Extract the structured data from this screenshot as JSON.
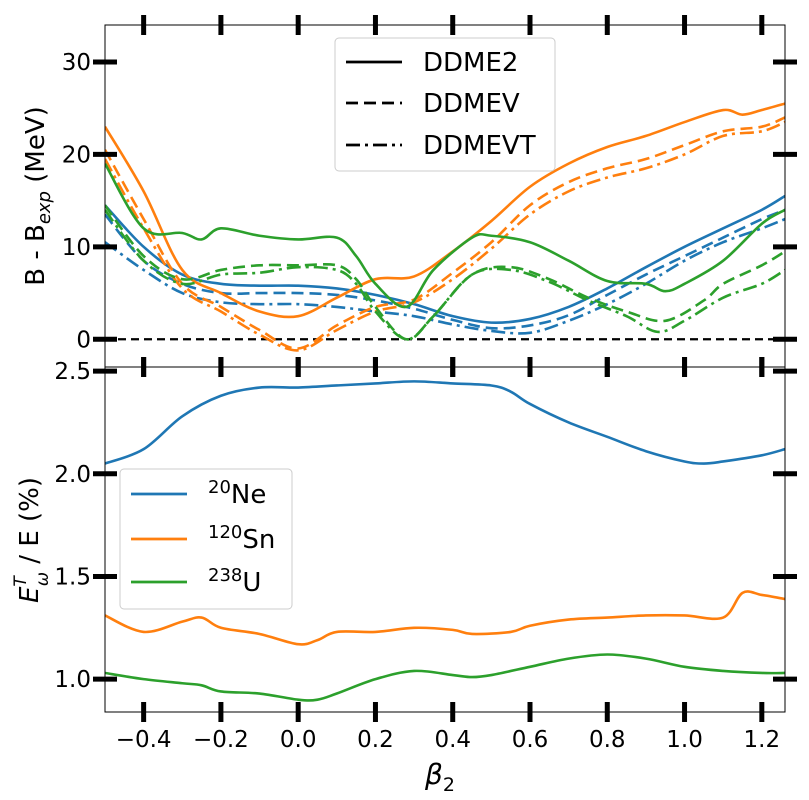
{
  "chart_data": [
    {
      "type": "line",
      "panel": "top",
      "ylabel": "B - B",
      "ylabel_sub": "exp",
      "ylabel_tail": " (MeV)",
      "xlim": [
        -0.5,
        1.26
      ],
      "ylim": [
        -3,
        34
      ],
      "yticks": [
        0,
        10,
        20,
        30
      ],
      "ytick_labels": [
        "0",
        "10",
        "20",
        "30"
      ],
      "zero_line": true,
      "legend": {
        "position": "top-center",
        "entries": [
          {
            "label": "DDME2",
            "style": "solid"
          },
          {
            "label": "DDMEV",
            "style": "dashed"
          },
          {
            "label": "DDMEVT",
            "style": "dashdot"
          }
        ]
      },
      "series": [
        {
          "name": "20Ne DDME2",
          "nucleus": "20Ne",
          "model": "DDME2",
          "color": "#1f77b4",
          "style": "solid",
          "x": [
            -0.5,
            -0.4,
            -0.3,
            -0.2,
            -0.1,
            0.0,
            0.1,
            0.2,
            0.3,
            0.4,
            0.5,
            0.6,
            0.7,
            0.8,
            0.9,
            1.0,
            1.1,
            1.2,
            1.26
          ],
          "y": [
            14.5,
            10.0,
            7.0,
            6.0,
            5.8,
            5.8,
            5.5,
            4.8,
            3.8,
            2.5,
            1.8,
            2.2,
            3.5,
            5.5,
            7.8,
            10.0,
            12.0,
            14.0,
            15.5
          ]
        },
        {
          "name": "20Ne DDMEV",
          "nucleus": "20Ne",
          "model": "DDMEV",
          "color": "#1f77b4",
          "style": "dashed",
          "x": [
            -0.5,
            -0.4,
            -0.3,
            -0.2,
            -0.1,
            0.0,
            0.1,
            0.2,
            0.3,
            0.4,
            0.5,
            0.6,
            0.7,
            0.8,
            0.9,
            1.0,
            1.1,
            1.2,
            1.26
          ],
          "y": [
            13.5,
            8.5,
            6.0,
            5.0,
            5.0,
            5.0,
            4.8,
            4.2,
            3.3,
            2.1,
            1.2,
            1.5,
            2.6,
            4.8,
            7.0,
            9.0,
            11.0,
            13.0,
            14.0
          ]
        },
        {
          "name": "20Ne DDMEVT",
          "nucleus": "20Ne",
          "model": "DDMEVT",
          "color": "#1f77b4",
          "style": "dashdot",
          "x": [
            -0.5,
            -0.4,
            -0.3,
            -0.2,
            -0.1,
            0.0,
            0.1,
            0.2,
            0.3,
            0.4,
            0.5,
            0.6,
            0.7,
            0.8,
            0.9,
            1.0,
            1.1,
            1.2,
            1.26
          ],
          "y": [
            10.5,
            7.5,
            5.0,
            4.0,
            3.8,
            3.8,
            3.5,
            3.0,
            2.5,
            1.6,
            0.9,
            0.7,
            2.0,
            3.8,
            6.0,
            8.5,
            10.5,
            12.0,
            13.0
          ]
        },
        {
          "name": "120Sn DDME2",
          "nucleus": "120Sn",
          "model": "DDME2",
          "color": "#ff7f0e",
          "style": "solid",
          "x": [
            -0.5,
            -0.4,
            -0.3,
            -0.2,
            -0.1,
            0.0,
            0.1,
            0.2,
            0.3,
            0.4,
            0.5,
            0.6,
            0.7,
            0.8,
            0.9,
            1.0,
            1.1,
            1.15,
            1.2,
            1.26
          ],
          "y": [
            23.0,
            16.0,
            7.5,
            5.0,
            3.0,
            2.5,
            4.5,
            6.5,
            6.8,
            9.5,
            12.8,
            16.5,
            19.0,
            20.8,
            22.0,
            23.5,
            24.8,
            24.3,
            24.8,
            25.5
          ]
        },
        {
          "name": "120Sn DDMEV",
          "nucleus": "120Sn",
          "model": "DDMEV",
          "color": "#ff7f0e",
          "style": "dashed",
          "x": [
            -0.5,
            -0.4,
            -0.3,
            -0.2,
            -0.1,
            0.0,
            0.1,
            0.2,
            0.3,
            0.4,
            0.5,
            0.6,
            0.7,
            0.8,
            0.9,
            1.0,
            1.1,
            1.2,
            1.26
          ],
          "y": [
            20.5,
            13.0,
            6.0,
            3.5,
            1.0,
            -1.0,
            1.5,
            3.5,
            4.3,
            7.2,
            10.5,
            14.5,
            17.0,
            18.5,
            19.5,
            21.0,
            22.5,
            23.0,
            24.0
          ]
        },
        {
          "name": "120Sn DDMEVT",
          "nucleus": "120Sn",
          "model": "DDMEVT",
          "color": "#ff7f0e",
          "style": "dashdot",
          "x": [
            -0.5,
            -0.4,
            -0.3,
            -0.2,
            -0.1,
            0.0,
            0.1,
            0.2,
            0.3,
            0.4,
            0.5,
            0.6,
            0.7,
            0.8,
            0.9,
            1.0,
            1.1,
            1.2,
            1.26
          ],
          "y": [
            19.5,
            12.0,
            5.5,
            3.0,
            0.5,
            -1.2,
            1.0,
            3.0,
            4.0,
            6.5,
            9.8,
            13.5,
            16.0,
            17.5,
            18.5,
            20.0,
            22.0,
            22.5,
            23.5
          ]
        },
        {
          "name": "238U DDME2",
          "nucleus": "238U",
          "model": "DDME2",
          "color": "#2ca02c",
          "style": "solid",
          "x": [
            -0.5,
            -0.4,
            -0.3,
            -0.25,
            -0.2,
            -0.1,
            0.0,
            0.1,
            0.15,
            0.2,
            0.28,
            0.35,
            0.45,
            0.5,
            0.6,
            0.7,
            0.8,
            0.9,
            0.95,
            1.0,
            1.1,
            1.2,
            1.26
          ],
          "y": [
            19.0,
            12.0,
            11.5,
            10.8,
            12.0,
            11.2,
            10.8,
            11.0,
            9.0,
            6.0,
            3.5,
            7.5,
            11.0,
            11.2,
            10.5,
            8.5,
            6.3,
            6.0,
            5.2,
            6.0,
            8.5,
            12.5,
            14.0
          ]
        },
        {
          "name": "238U DDMEV",
          "nucleus": "238U",
          "model": "DDMEV",
          "color": "#2ca02c",
          "style": "dashed",
          "x": [
            -0.5,
            -0.4,
            -0.3,
            -0.2,
            -0.1,
            0.0,
            0.1,
            0.15,
            0.2,
            0.28,
            0.35,
            0.45,
            0.55,
            0.65,
            0.75,
            0.85,
            0.95,
            1.05,
            1.1,
            1.2,
            1.26
          ],
          "y": [
            14.5,
            9.0,
            6.5,
            7.5,
            8.0,
            8.0,
            8.0,
            6.5,
            3.5,
            0.0,
            2.5,
            7.0,
            7.8,
            6.5,
            4.5,
            3.0,
            2.0,
            4.2,
            6.0,
            8.0,
            9.5
          ]
        },
        {
          "name": "238U DDMEVT",
          "nucleus": "238U",
          "model": "DDMEVT",
          "color": "#2ca02c",
          "style": "dashdot",
          "x": [
            -0.5,
            -0.4,
            -0.3,
            -0.2,
            -0.1,
            0.0,
            0.1,
            0.15,
            0.2,
            0.28,
            0.35,
            0.45,
            0.55,
            0.65,
            0.75,
            0.85,
            0.93,
            1.0,
            1.1,
            1.2,
            1.26
          ],
          "y": [
            14.0,
            8.5,
            6.0,
            7.0,
            7.2,
            7.8,
            7.5,
            6.0,
            3.0,
            0.0,
            2.5,
            7.0,
            7.5,
            6.2,
            4.2,
            2.5,
            0.8,
            2.0,
            4.5,
            6.0,
            7.5
          ]
        }
      ]
    },
    {
      "type": "line",
      "panel": "bottom",
      "title": "",
      "xlabel": "β",
      "xlabel_sub": "2",
      "ylabel": "E",
      "ylabel_sup": "T",
      "ylabel_sub": "ω",
      "ylabel_tail": " / E (%)",
      "xlim": [
        -0.5,
        1.26
      ],
      "ylim": [
        0.84,
        2.52
      ],
      "xticks": [
        -0.4,
        -0.2,
        0.0,
        0.2,
        0.4,
        0.6,
        0.8,
        1.0,
        1.2
      ],
      "xtick_labels": [
        "−0.4",
        "−0.2",
        "0.0",
        "0.2",
        "0.4",
        "0.6",
        "0.8",
        "1.0",
        "1.2"
      ],
      "yticks": [
        1.0,
        1.5,
        2.0,
        2.5
      ],
      "ytick_labels": [
        "1.0",
        "1.5",
        "2.0",
        "2.5"
      ],
      "legend": {
        "position": "center-left",
        "entries": [
          {
            "mass": "20",
            "symbol": "Ne",
            "color": "#1f77b4"
          },
          {
            "mass": "120",
            "symbol": "Sn",
            "color": "#ff7f0e"
          },
          {
            "mass": "238",
            "symbol": "U",
            "color": "#2ca02c"
          }
        ]
      },
      "series": [
        {
          "name": "20Ne",
          "color": "#1f77b4",
          "x": [
            -0.5,
            -0.4,
            -0.3,
            -0.2,
            -0.1,
            0.0,
            0.1,
            0.2,
            0.3,
            0.4,
            0.5,
            0.55,
            0.6,
            0.7,
            0.8,
            0.9,
            1.0,
            1.05,
            1.1,
            1.2,
            1.26
          ],
          "y": [
            2.05,
            2.12,
            2.28,
            2.38,
            2.42,
            2.42,
            2.43,
            2.44,
            2.45,
            2.44,
            2.43,
            2.4,
            2.34,
            2.25,
            2.18,
            2.11,
            2.06,
            2.05,
            2.06,
            2.09,
            2.12
          ]
        },
        {
          "name": "120Sn",
          "color": "#ff7f0e",
          "x": [
            -0.5,
            -0.4,
            -0.3,
            -0.25,
            -0.2,
            -0.1,
            0.0,
            0.05,
            0.1,
            0.2,
            0.3,
            0.4,
            0.45,
            0.55,
            0.6,
            0.7,
            0.8,
            0.9,
            1.0,
            1.1,
            1.15,
            1.2,
            1.26
          ],
          "y": [
            1.31,
            1.23,
            1.28,
            1.3,
            1.25,
            1.22,
            1.17,
            1.19,
            1.23,
            1.23,
            1.25,
            1.24,
            1.22,
            1.23,
            1.26,
            1.29,
            1.3,
            1.31,
            1.31,
            1.3,
            1.42,
            1.41,
            1.39
          ]
        },
        {
          "name": "238U",
          "color": "#2ca02c",
          "x": [
            -0.5,
            -0.4,
            -0.3,
            -0.25,
            -0.2,
            -0.1,
            0.0,
            0.05,
            0.1,
            0.2,
            0.3,
            0.4,
            0.45,
            0.5,
            0.6,
            0.7,
            0.8,
            0.9,
            1.0,
            1.1,
            1.2,
            1.26
          ],
          "y": [
            1.03,
            1.0,
            0.98,
            0.97,
            0.94,
            0.93,
            0.9,
            0.9,
            0.93,
            1.0,
            1.04,
            1.02,
            1.01,
            1.02,
            1.06,
            1.1,
            1.12,
            1.1,
            1.06,
            1.04,
            1.03,
            1.03
          ]
        }
      ]
    }
  ]
}
